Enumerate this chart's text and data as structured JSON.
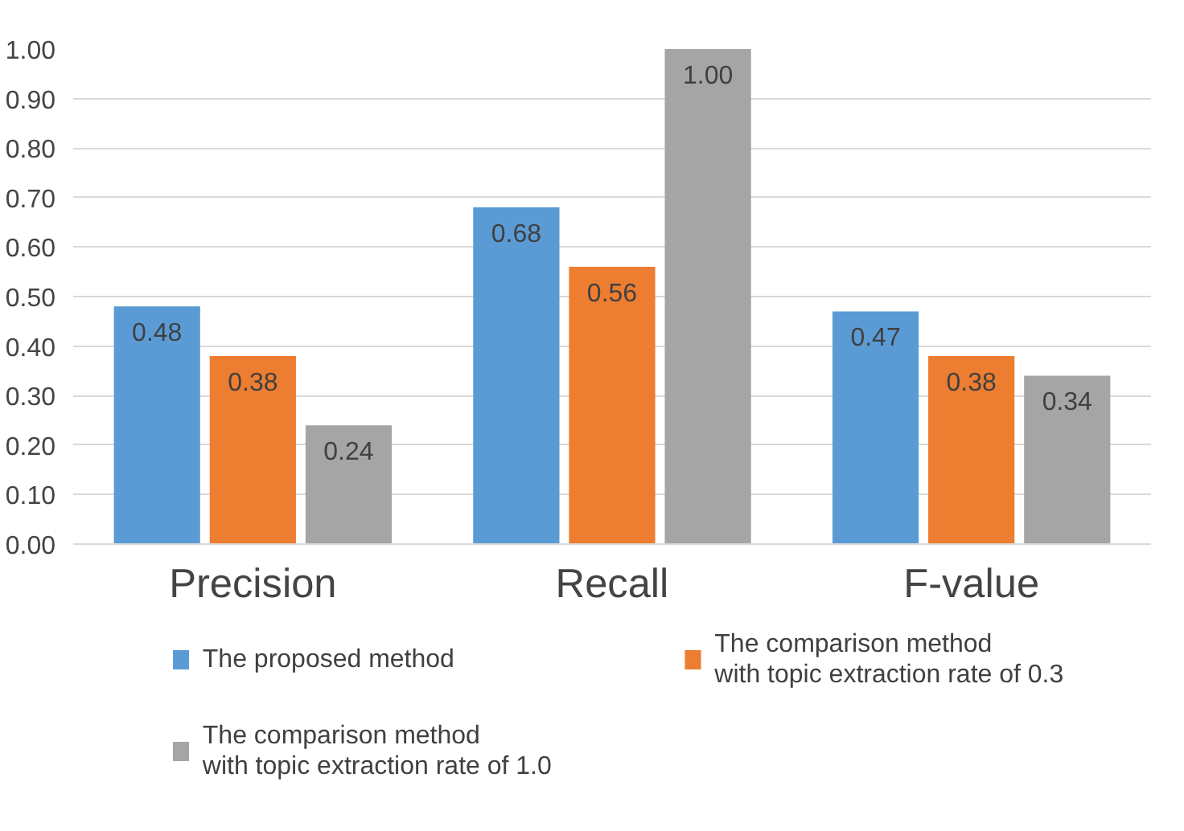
{
  "chart_data": {
    "type": "bar",
    "categories": [
      "Precision",
      "Recall",
      "F-value"
    ],
    "series": [
      {
        "name": "The proposed method",
        "color": "#5b9bd5",
        "values": [
          0.48,
          0.68,
          0.47
        ],
        "value_labels": [
          "0.48",
          "0.68",
          "0.47"
        ]
      },
      {
        "name": "The comparison method\nwith topic extraction rate of 0.3",
        "color": "#ed7d31",
        "values": [
          0.38,
          0.56,
          0.38
        ],
        "value_labels": [
          "0.38",
          "0.56",
          "0.38"
        ]
      },
      {
        "name": "The comparison method\n with topic extraction rate of 1.0",
        "color": "#a5a5a5",
        "values": [
          0.24,
          1.0,
          0.34
        ],
        "value_labels": [
          "0.24",
          "1.00",
          "0.34"
        ]
      }
    ],
    "ylim": [
      0,
      1.0
    ],
    "yticks": [
      {
        "value": 0,
        "label": "0.00"
      },
      {
        "value": 0.1,
        "label": "0.10"
      },
      {
        "value": 0.2,
        "label": "0.20"
      },
      {
        "value": 0.3,
        "label": "0.30"
      },
      {
        "value": 0.4,
        "label": "0.40"
      },
      {
        "value": 0.5,
        "label": "0.50"
      },
      {
        "value": 0.6,
        "label": "0.60"
      },
      {
        "value": 0.7,
        "label": "0.70"
      },
      {
        "value": 0.8,
        "label": "0.80"
      },
      {
        "value": 0.9,
        "label": "0.90"
      },
      {
        "value": 1.0,
        "label": "1.00"
      }
    ],
    "grid": "y",
    "legend": "bottom"
  }
}
